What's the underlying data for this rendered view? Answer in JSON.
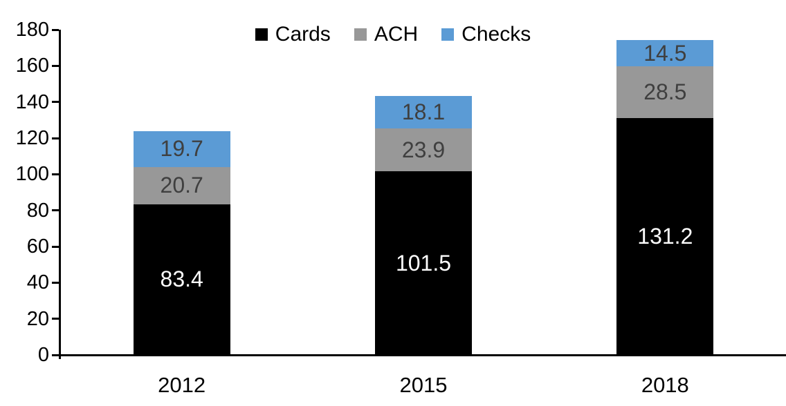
{
  "chart_data": {
    "type": "bar",
    "stacked": true,
    "title": "",
    "xlabel": "",
    "ylabel": "",
    "categories": [
      "2012",
      "2015",
      "2018"
    ],
    "series": [
      {
        "name": "Cards",
        "color": "#000000",
        "label_color": "#ffffff",
        "values": [
          83.4,
          101.5,
          131.2
        ]
      },
      {
        "name": "ACH",
        "color": "#989898",
        "label_color": "#3f3f3f",
        "values": [
          20.7,
          23.9,
          28.5
        ]
      },
      {
        "name": "Checks",
        "color": "#5b9bd5",
        "label_color": "#3f3f3f",
        "values": [
          19.7,
          18.1,
          14.5
        ]
      }
    ],
    "ylim": [
      0,
      180
    ],
    "yticks": [
      0,
      20,
      40,
      60,
      80,
      100,
      120,
      140,
      160,
      180
    ],
    "grid": false,
    "data_labels": true,
    "label_decimals": 1,
    "legend_position": "top-center"
  },
  "colors": {
    "background": "#ffffff",
    "axis": "#000000",
    "tick_label": "#000000"
  }
}
